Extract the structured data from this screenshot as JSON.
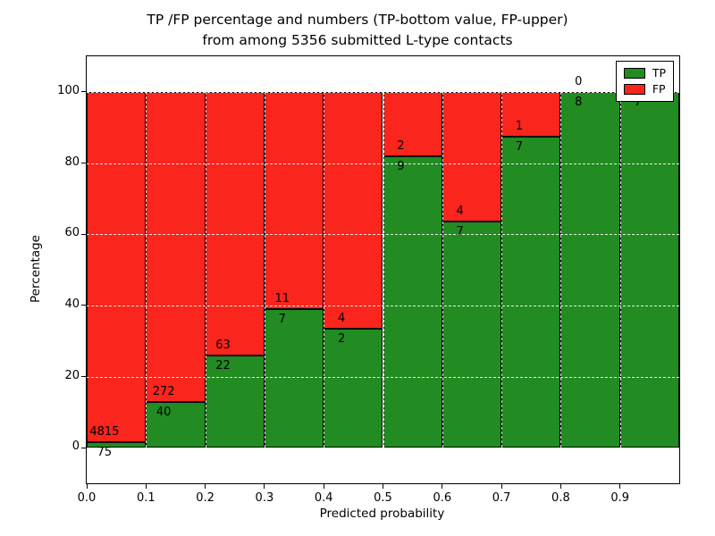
{
  "title": {
    "line1": "TP /FP percentage and numbers (TP-bottom value, FP-upper)",
    "line2": "from among 5356 submitted L-type contacts"
  },
  "chart_data": {
    "type": "bar",
    "subtype": "stacked-percentage-histogram",
    "title": "TP /FP percentage and numbers (TP-bottom value, FP-upper) from among 5356 submitted L-type contacts",
    "total_contacts": 5356,
    "xlabel": "Predicted probability",
    "ylabel": "Percentage",
    "xlim": [
      0.0,
      1.0
    ],
    "ylim": [
      -10,
      110
    ],
    "grid": true,
    "bin_width": 0.1,
    "bin_starts": [
      0.0,
      0.1,
      0.2,
      0.3,
      0.4,
      0.5,
      0.6,
      0.7,
      0.8,
      0.9
    ],
    "x_tick_values": [
      0.0,
      0.1,
      0.2,
      0.3,
      0.4,
      0.5,
      0.6,
      0.7,
      0.8,
      0.9
    ],
    "x_ticks": [
      "0.0",
      "0.1",
      "0.2",
      "0.3",
      "0.4",
      "0.5",
      "0.6",
      "0.7",
      "0.8",
      "0.9"
    ],
    "y_ticks": [
      0,
      20,
      40,
      60,
      80,
      100
    ],
    "series": [
      {
        "name": "TP",
        "color": "#228b22",
        "counts": [
          75,
          40,
          22,
          7,
          2,
          9,
          7,
          7,
          8,
          7
        ]
      },
      {
        "name": "FP",
        "color": "#fa251c",
        "counts": [
          4815,
          272,
          63,
          11,
          4,
          2,
          4,
          1,
          0,
          0
        ]
      }
    ],
    "tp_percent_green_height": [
      1.5,
      12.8,
      25.9,
      38.9,
      33.3,
      81.8,
      63.6,
      87.5,
      100.0,
      100.0
    ],
    "legend": {
      "position": "upper right",
      "entries": [
        {
          "label": "TP",
          "color": "#228b22"
        },
        {
          "label": "FP",
          "color": "#fa251c"
        }
      ]
    }
  }
}
